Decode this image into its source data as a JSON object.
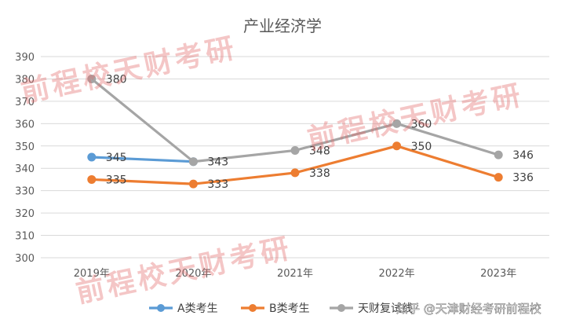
{
  "chart_data": {
    "type": "line",
    "title": "产业经济学",
    "xlabel": "",
    "ylabel": "",
    "categories": [
      "2019年",
      "2020年",
      "2021年",
      "2022年",
      "2023年"
    ],
    "ylim": [
      300,
      390
    ],
    "yticks": [
      300,
      310,
      320,
      330,
      340,
      350,
      360,
      370,
      380,
      390
    ],
    "grid": true,
    "legend_position": "bottom",
    "series": [
      {
        "name": "A类考生",
        "color": "#5b9bd5",
        "values": [
          345,
          343,
          null,
          null,
          null
        ]
      },
      {
        "name": "B类考生",
        "color": "#ed7d31",
        "values": [
          335,
          333,
          338,
          350,
          336
        ]
      },
      {
        "name": "天财复试线",
        "color": "#a5a5a5",
        "values": [
          380,
          343,
          348,
          360,
          346
        ]
      }
    ],
    "data_labels": [
      {
        "series": 0,
        "index": 0,
        "text": "345"
      },
      {
        "series": 0,
        "index": 1,
        "text": "343"
      },
      {
        "series": 1,
        "index": 0,
        "text": "335"
      },
      {
        "series": 1,
        "index": 1,
        "text": "333"
      },
      {
        "series": 1,
        "index": 2,
        "text": "338"
      },
      {
        "series": 1,
        "index": 3,
        "text": "350"
      },
      {
        "series": 1,
        "index": 4,
        "text": "336"
      },
      {
        "series": 2,
        "index": 0,
        "text": "380"
      },
      {
        "series": 2,
        "index": 2,
        "text": "348"
      },
      {
        "series": 2,
        "index": 3,
        "text": "360"
      },
      {
        "series": 2,
        "index": 4,
        "text": "346"
      }
    ]
  },
  "watermark": {
    "text": "前程校天财考研",
    "color": "#e46c6c"
  },
  "footer_watermark": {
    "text": "知乎 @天津财经考研前程校"
  }
}
